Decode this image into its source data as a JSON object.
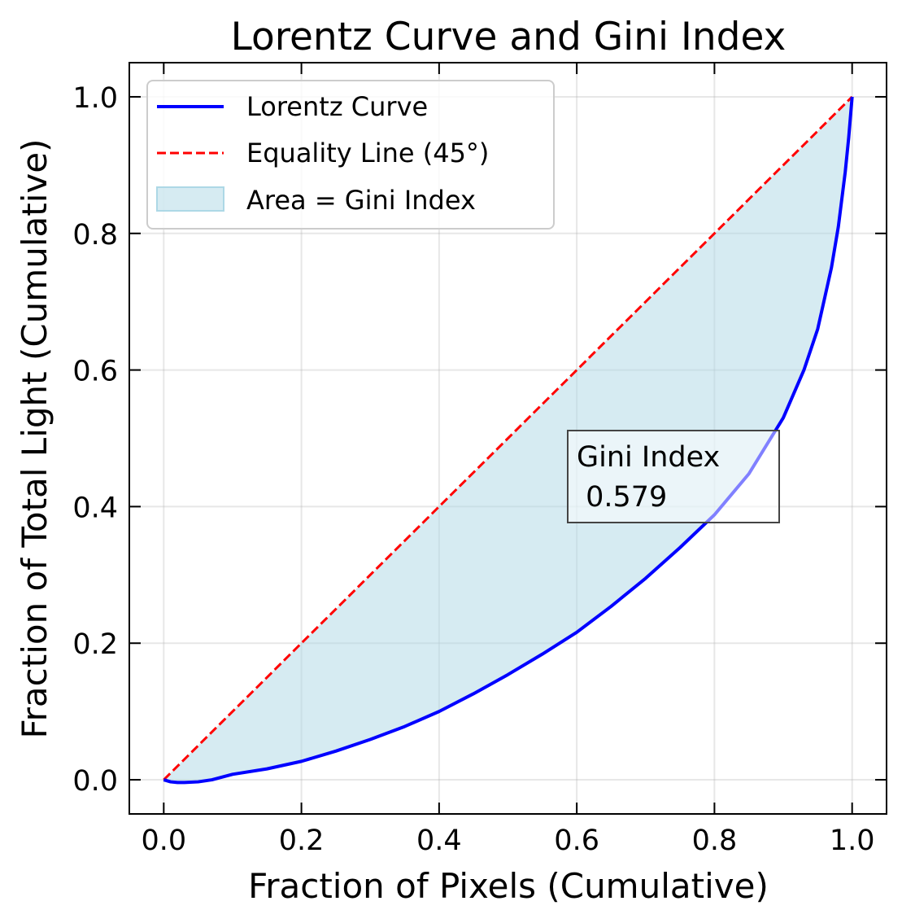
{
  "chart_data": {
    "type": "line",
    "title": "Lorentz Curve and Gini Index",
    "xlabel": "Fraction of Pixels (Cumulative)",
    "ylabel": "Fraction of Total Light (Cumulative)",
    "xlim": [
      -0.05,
      1.05
    ],
    "ylim": [
      -0.05,
      1.05
    ],
    "xticks": [
      0.0,
      0.2,
      0.4,
      0.6,
      0.8,
      1.0
    ],
    "xtick_labels": [
      "0.0",
      "0.2",
      "0.4",
      "0.6",
      "0.8",
      "1.0"
    ],
    "yticks": [
      0.0,
      0.2,
      0.4,
      0.6,
      0.8,
      1.0
    ],
    "ytick_labels": [
      "0.0",
      "0.2",
      "0.4",
      "0.6",
      "0.8",
      "1.0"
    ],
    "grid": true,
    "legend_position": "top-left",
    "series": [
      {
        "name": "Lorentz Curve",
        "color": "#0000ff",
        "style": "solid",
        "x": [
          0.0,
          0.01,
          0.02,
          0.03,
          0.05,
          0.07,
          0.1,
          0.15,
          0.2,
          0.25,
          0.3,
          0.35,
          0.4,
          0.45,
          0.5,
          0.55,
          0.6,
          0.65,
          0.7,
          0.75,
          0.8,
          0.85,
          0.9,
          0.93,
          0.95,
          0.97,
          0.98,
          0.99,
          0.995,
          1.0
        ],
        "y": [
          0.0,
          -0.003,
          -0.004,
          -0.004,
          -0.003,
          0.0,
          0.008,
          0.016,
          0.027,
          0.042,
          0.059,
          0.078,
          0.1,
          0.126,
          0.154,
          0.184,
          0.216,
          0.254,
          0.295,
          0.34,
          0.388,
          0.448,
          0.53,
          0.6,
          0.66,
          0.75,
          0.81,
          0.89,
          0.94,
          1.0
        ]
      },
      {
        "name": "Equality Line (45°)",
        "color": "#ff0000",
        "style": "dashed",
        "x": [
          0.0,
          1.0
        ],
        "y": [
          0.0,
          1.0
        ]
      }
    ],
    "fill": {
      "name": "Area = Gini Index",
      "color": "#add8e6",
      "opacity": 0.5,
      "between": [
        "Equality Line (45°)",
        "Lorentz Curve"
      ]
    },
    "annotation": {
      "text_line1": "Gini Index",
      "text_line2": " 0.579",
      "x": 0.6,
      "y": 0.4
    }
  }
}
